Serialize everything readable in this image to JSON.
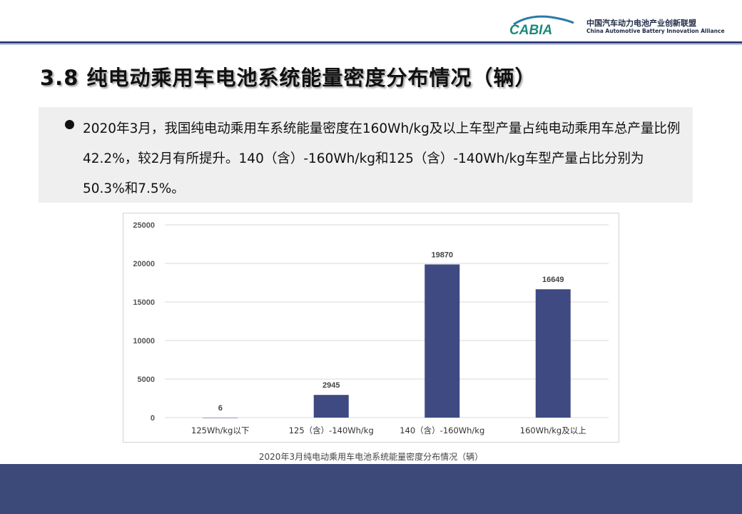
{
  "header": {
    "logo_mark": "CABIA",
    "logo_cn": "中国汽车动力电池产业创新联盟",
    "logo_en": "China Automotive Battery Innovation Alliance",
    "rule_color": "#2f3f7a"
  },
  "title": "3.8 纯电动乘用车电池系统能量密度分布情况（辆）",
  "bullet": {
    "text": "2020年3月，我国纯电动乘用车系统能量密度在160Wh/kg及以上车型产量占纯电动乘用车总产量比例42.2%，较2月有所提升。140（含）-160Wh/kg和125（含）-140Wh/kg车型产量占比分别为50.3%和7.5%。"
  },
  "caption": "2020年3月纯电动乘用车电池系统能量密度分布情况（辆）",
  "chart_data": {
    "type": "bar",
    "categories": [
      "125Wh/kg以下",
      "125（含）-140Wh/kg",
      "140（含）-160Wh/kg",
      "160Wh/kg及以上"
    ],
    "values": [
      6,
      2945,
      19870,
      16649
    ],
    "data_labels": [
      "6",
      "2945",
      "19870",
      "16649"
    ],
    "ylim": [
      0,
      25000
    ],
    "yticks": [
      0,
      5000,
      10000,
      15000,
      20000,
      25000
    ],
    "ytick_labels": [
      "0",
      "5000",
      "10000",
      "15000",
      "20000",
      "25000"
    ],
    "grid": true,
    "bar_color": "#3f4a82",
    "grid_color": "#d9d9d9"
  },
  "footer_color": "#3c4a7a"
}
